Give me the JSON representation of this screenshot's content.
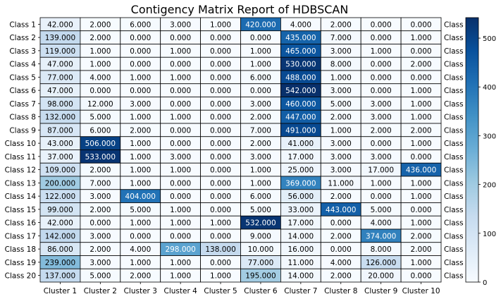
{
  "chart_data": {
    "type": "heatmap",
    "title": "Contigency Matrix Report of HDBSCAN",
    "rows": [
      "Class 1",
      "Class 2",
      "Class 3",
      "Class 4",
      "Class 5",
      "Class 6",
      "Class 7",
      "Class 8",
      "Class 9",
      "Class 10",
      "Class 11",
      "Class 12",
      "Class 13",
      "Class 14",
      "Class 15",
      "Class 16",
      "Class 17",
      "Class 18",
      "Class 19",
      "Class 20"
    ],
    "columns": [
      "Cluster 1",
      "Cluster 2",
      "Cluster 3",
      "Cluster 4",
      "Cluster 5",
      "Cluster 6",
      "Cluster 7",
      "Cluster 8",
      "Cluster 9",
      "Cluster 10"
    ],
    "values": [
      [
        42,
        2,
        6,
        3,
        1,
        420,
        4,
        2,
        0,
        0
      ],
      [
        139,
        2,
        0,
        0,
        0,
        0,
        435,
        7,
        0,
        1
      ],
      [
        119,
        1,
        0,
        1,
        0,
        1,
        465,
        3,
        1,
        0
      ],
      [
        47,
        1,
        0,
        0,
        0,
        1,
        530,
        8,
        0,
        2
      ],
      [
        77,
        4,
        1,
        1,
        0,
        6,
        488,
        1,
        0,
        0
      ],
      [
        47,
        0,
        0,
        0,
        0,
        0,
        542,
        3,
        0,
        1
      ],
      [
        98,
        12,
        3,
        0,
        0,
        3,
        460,
        5,
        3,
        1
      ],
      [
        132,
        5,
        1,
        1,
        0,
        2,
        447,
        2,
        3,
        1
      ],
      [
        87,
        6,
        2,
        0,
        0,
        7,
        491,
        1,
        2,
        2
      ],
      [
        43,
        506,
        1,
        0,
        0,
        2,
        41,
        3,
        0,
        1
      ],
      [
        37,
        533,
        1,
        3,
        0,
        3,
        17,
        3,
        3,
        0
      ],
      [
        109,
        2,
        1,
        1,
        0,
        1,
        25,
        3,
        17,
        436
      ],
      [
        200,
        7,
        1,
        0,
        0,
        1,
        369,
        11,
        1,
        1
      ],
      [
        122,
        3,
        404,
        0,
        0,
        6,
        56,
        2,
        0,
        1
      ],
      [
        99,
        2,
        5,
        1,
        0,
        5,
        33,
        443,
        5,
        0
      ],
      [
        42,
        0,
        1,
        1,
        1,
        532,
        17,
        0,
        4,
        1
      ],
      [
        142,
        3,
        0,
        0,
        0,
        9,
        14,
        2,
        374,
        2
      ],
      [
        86,
        2,
        4,
        298,
        138,
        10,
        16,
        0,
        8,
        2
      ],
      [
        239,
        3,
        1,
        1,
        0,
        77,
        11,
        4,
        126,
        1
      ],
      [
        137,
        5,
        2,
        1,
        1,
        195,
        14,
        2,
        20,
        0
      ]
    ],
    "value_format": "0.000",
    "colormap": "Blues",
    "colorbar": {
      "range": [
        0,
        542
      ],
      "ticks": [
        0,
        100,
        200,
        300,
        400,
        500
      ]
    },
    "right_labels": [
      "Class 1",
      "Class 2",
      "Class 3",
      "Class 4",
      "Class 5",
      "Class 6",
      "Class 7",
      "Class 8",
      "Class 9",
      "Class 10",
      "Class 11",
      "Class 12",
      "Class 13",
      "Class 14",
      "Class 15",
      "Class 16",
      "Class 17",
      "Class 18",
      "Class 19",
      "Class 20"
    ]
  }
}
